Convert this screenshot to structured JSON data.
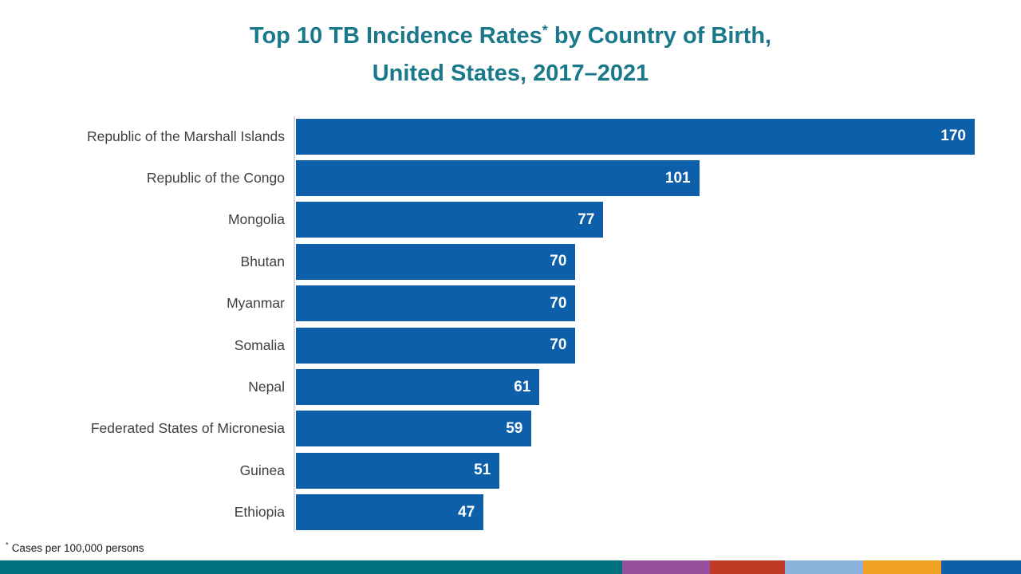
{
  "slide": {
    "title_line1": "Top 10 TB Incidence Rates",
    "title_sup": "*",
    "title_line1_rest": " by Country of Birth,",
    "title_line2": "United States, 2017–2021",
    "footnote_sup": "*",
    "footnote_text": "Cases per 100,000 persons"
  },
  "colors": {
    "title_teal": "#19788A",
    "bar_blue": "#0D5FA9",
    "label_gray": "#404040",
    "axis_gray": "#D9D9D9",
    "value_text": "#FFFFFF"
  },
  "chart_data": {
    "type": "bar",
    "orientation": "horizontal",
    "title": "Top 10 TB Incidence Rates* by Country of Birth, United States, 2017–2021",
    "categories": [
      "Republic of the Marshall Islands",
      "Republic of the Congo",
      "Mongolia",
      "Bhutan",
      "Myanmar",
      "Somalia",
      "Nepal",
      "Federated States of Micronesia",
      "Guinea",
      "Ethiopia"
    ],
    "values": [
      170,
      101,
      77,
      70,
      70,
      70,
      61,
      59,
      51,
      47
    ],
    "xlim": [
      0,
      170
    ],
    "value_label_position": "inside-end",
    "grid": false,
    "legend": false,
    "unit_note": "Cases per 100,000 persons"
  },
  "footer_strip": {
    "segments": [
      {
        "name": "teal",
        "color": "#00717C",
        "width": "grow"
      },
      {
        "name": "purple",
        "color": "#96509D",
        "width": 110
      },
      {
        "name": "red",
        "color": "#C03A26",
        "width": 94
      },
      {
        "name": "light-blue",
        "color": "#8AB3DC",
        "width": 98
      },
      {
        "name": "orange",
        "color": "#F2A024",
        "width": 98
      },
      {
        "name": "blue",
        "color": "#0F5EA9",
        "width": 100
      }
    ]
  }
}
